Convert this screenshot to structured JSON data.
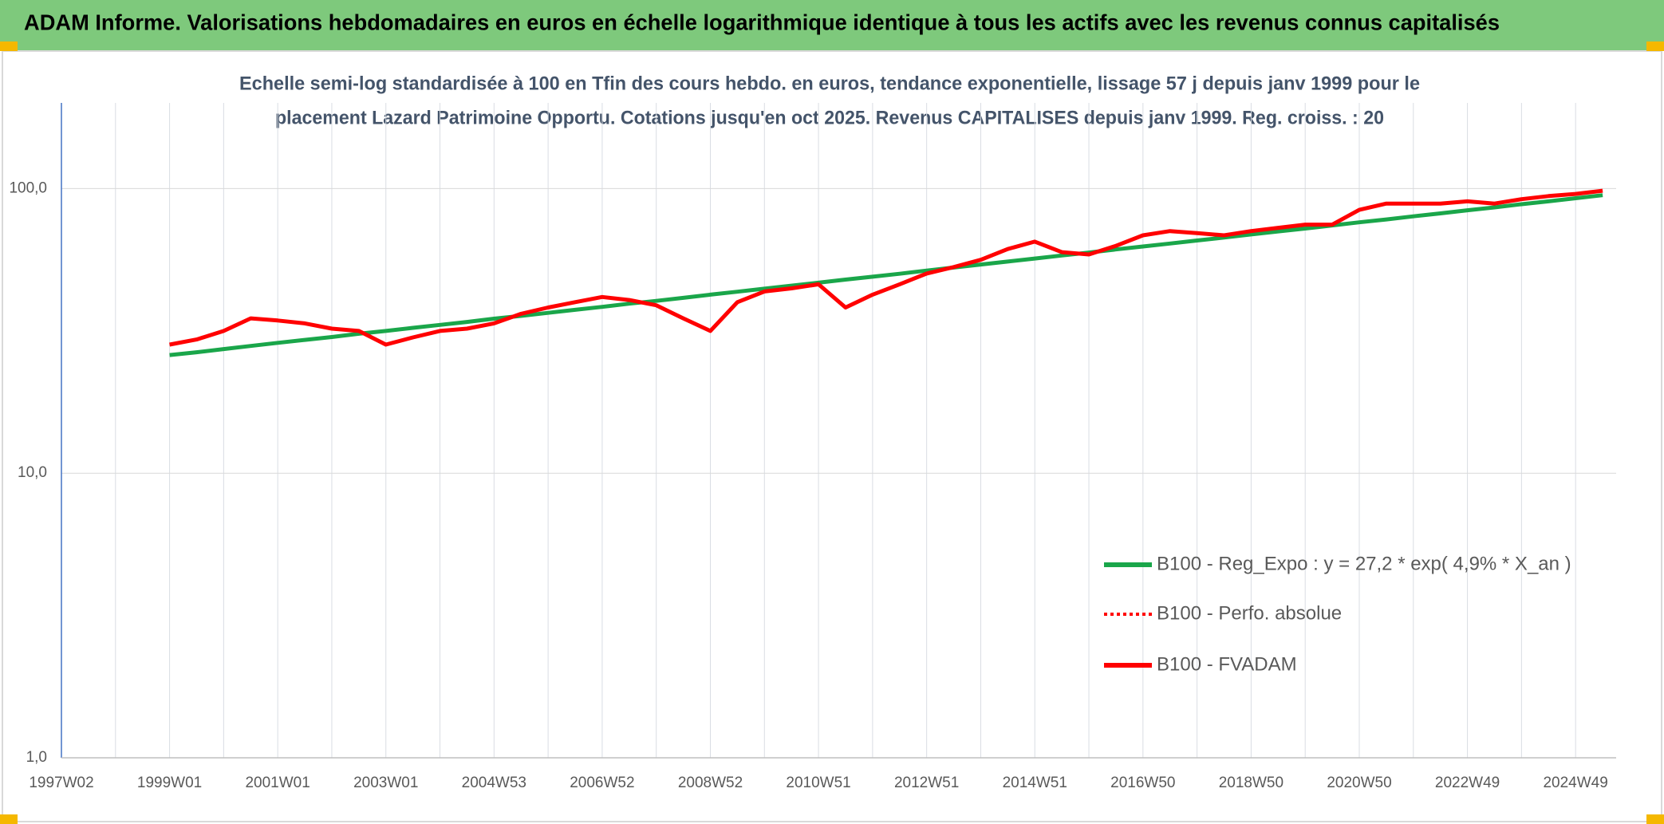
{
  "chart_data": {
    "type": "line",
    "title": "ADAM Informe. Valorisations hebdomadaires en euros en échelle logarithmique identique à tous les actifs avec les revenus connus capitalisés",
    "subtitle": [
      "Echelle semi-log standardisée à 100 en Tfin des cours hebdo. en euros, tendance exponentielle, lissage 57 j depuis janv 1999 pour le",
      "placement Lazard Patrimoine Opportu. Cotations jusqu'en oct 2025. Revenus CAPITALISES depuis janv 1999. Reg. croiss. : 20"
    ],
    "categories": [
      "1997W02",
      null,
      null,
      null,
      "1999W01",
      null,
      null,
      null,
      "2001W01",
      null,
      null,
      null,
      "2003W01",
      null,
      null,
      null,
      "2004W53",
      null,
      null,
      null,
      "2006W52",
      null,
      null,
      null,
      "2008W52",
      null,
      null,
      null,
      "2010W51",
      null,
      null,
      null,
      "2012W51",
      null,
      null,
      null,
      "2014W51",
      null,
      null,
      null,
      "2016W50",
      null,
      null,
      null,
      "2018W50",
      null,
      null,
      null,
      "2020W50",
      null,
      null,
      null,
      "2022W49",
      null,
      null,
      null,
      "2024W49",
      null
    ],
    "log_scale": true,
    "grid": true,
    "ylim": [
      1,
      200
    ],
    "yticks": [
      {
        "value": 1,
        "label": "1,0"
      },
      {
        "value": 10,
        "label": "10,0"
      },
      {
        "value": 100,
        "label": "100,0"
      }
    ],
    "series": [
      {
        "name": "B100 - Reg_Expo : y = 27,2 * exp( 4,9% *  X_an )",
        "color": "#1aa64a",
        "style": "solid",
        "values": [
          null,
          null,
          null,
          null,
          26.0,
          26.6,
          27.3,
          28.0,
          28.7,
          29.4,
          30.1,
          30.9,
          31.6,
          32.4,
          33.2,
          34.0,
          34.9,
          35.7,
          36.6,
          37.5,
          38.4,
          39.4,
          40.3,
          41.3,
          42.4,
          43.4,
          44.5,
          45.6,
          46.7,
          47.9,
          49.0,
          50.2,
          51.5,
          52.8,
          54.1,
          55.4,
          56.8,
          58.2,
          59.6,
          61.1,
          62.6,
          64.1,
          65.7,
          67.3,
          69.0,
          70.7,
          72.4,
          74.2,
          76.1,
          77.9,
          79.9,
          81.8,
          83.9,
          85.9,
          88.1,
          90.2,
          92.5,
          94.8
        ]
      },
      {
        "name": "B100 - Perfo. absolue",
        "color": "#ff0000",
        "style": "dotted",
        "values": [
          null,
          null,
          null,
          null,
          28.3,
          29.5,
          31.6,
          35.0,
          34.4,
          33.6,
          32.2,
          31.6,
          28.3,
          30.0,
          31.6,
          32.2,
          33.6,
          36.3,
          38.2,
          39.9,
          41.6,
          40.6,
          38.9,
          35.0,
          31.6,
          39.9,
          43.5,
          44.6,
          46.1,
          38.2,
          42.4,
          46.1,
          50.3,
          53.0,
          56.2,
          61.3,
          65.1,
          59.8,
          58.7,
          62.9,
          68.5,
          70.9,
          69.7,
          68.5,
          70.9,
          72.8,
          74.7,
          74.7,
          84.2,
          88.6,
          88.6,
          88.6,
          90.2,
          88.6,
          91.8,
          94.1,
          95.8,
          98.3
        ]
      },
      {
        "name": "B100 - FVADAM",
        "color": "#ff0000",
        "style": "solid",
        "values": [
          null,
          null,
          null,
          null,
          28.3,
          29.5,
          31.6,
          35.0,
          34.4,
          33.6,
          32.2,
          31.6,
          28.3,
          30.0,
          31.6,
          32.2,
          33.6,
          36.3,
          38.2,
          39.9,
          41.6,
          40.6,
          38.9,
          35.0,
          31.6,
          39.9,
          43.5,
          44.6,
          46.1,
          38.2,
          42.4,
          46.1,
          50.3,
          53.0,
          56.2,
          61.3,
          65.1,
          59.8,
          58.7,
          62.9,
          68.5,
          70.9,
          69.7,
          68.5,
          70.9,
          72.8,
          74.7,
          74.7,
          84.2,
          88.6,
          88.6,
          88.6,
          90.2,
          88.6,
          91.8,
          94.1,
          95.8,
          98.3
        ]
      }
    ]
  }
}
